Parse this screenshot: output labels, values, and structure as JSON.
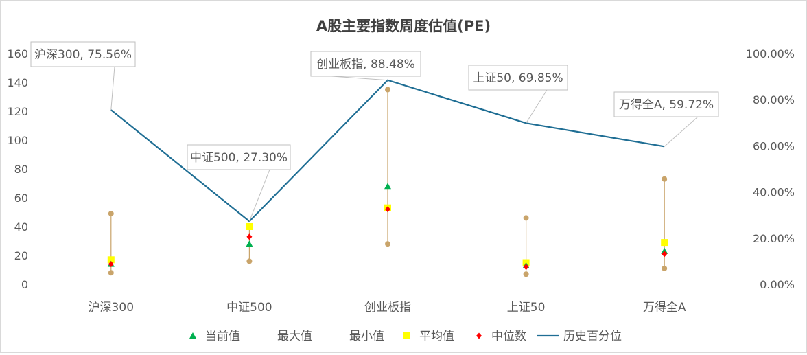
{
  "chart_data": {
    "type": "line",
    "title": "A股主要指数周度估值(PE)",
    "categories": [
      "沪深300",
      "中证500",
      "创业板指",
      "上证50",
      "万得全A"
    ],
    "y_left": {
      "range": [
        0,
        160
      ],
      "step": 20,
      "ticks": [
        "0",
        "20",
        "40",
        "60",
        "80",
        "100",
        "120",
        "140",
        "160"
      ]
    },
    "y_right": {
      "range": [
        0,
        1
      ],
      "step": 0.2,
      "ticks": [
        "0.00%",
        "20.00%",
        "40.00%",
        "60.00%",
        "80.00%",
        "100.00%"
      ]
    },
    "series": [
      {
        "name": "当前值",
        "marker": "triangle",
        "color": "#00b050",
        "axis": "left",
        "values": [
          14,
          28,
          68,
          13,
          23
        ]
      },
      {
        "name": "最大值",
        "marker": "circle",
        "color": "#c9a46a",
        "axis": "left",
        "values": [
          49,
          40,
          135,
          46,
          73
        ]
      },
      {
        "name": "最小值",
        "marker": "circle",
        "color": "#c9a46a",
        "axis": "left",
        "values": [
          8,
          16,
          28,
          7,
          11
        ]
      },
      {
        "name": "平均值",
        "marker": "square",
        "color": "#ffff00",
        "axis": "left",
        "values": [
          17,
          40,
          53,
          15,
          29
        ]
      },
      {
        "name": "中位数",
        "marker": "diamond",
        "color": "#ff0000",
        "axis": "left",
        "values": [
          14,
          33,
          52,
          12,
          21
        ]
      },
      {
        "name": "历史百分位",
        "marker": "line",
        "color": "#1f6e94",
        "axis": "right",
        "values": [
          0.7556,
          0.273,
          0.8848,
          0.6985,
          0.5972
        ]
      }
    ],
    "data_labels": [
      "沪深300, 75.56%",
      "中证500, 27.30%",
      "创业板指, 88.48%",
      "上证50, 69.85%",
      "万得全A, 59.72%"
    ],
    "legend": {
      "position": "bottom",
      "entries": [
        "当前值",
        "最大值",
        "最小值",
        "平均值",
        "中位数",
        "历史百分位"
      ]
    },
    "colors": {
      "range_line": "#c9a46a",
      "callout_border": "#bfbfbf",
      "axis_text": "#595959",
      "title_text": "#404040"
    }
  }
}
